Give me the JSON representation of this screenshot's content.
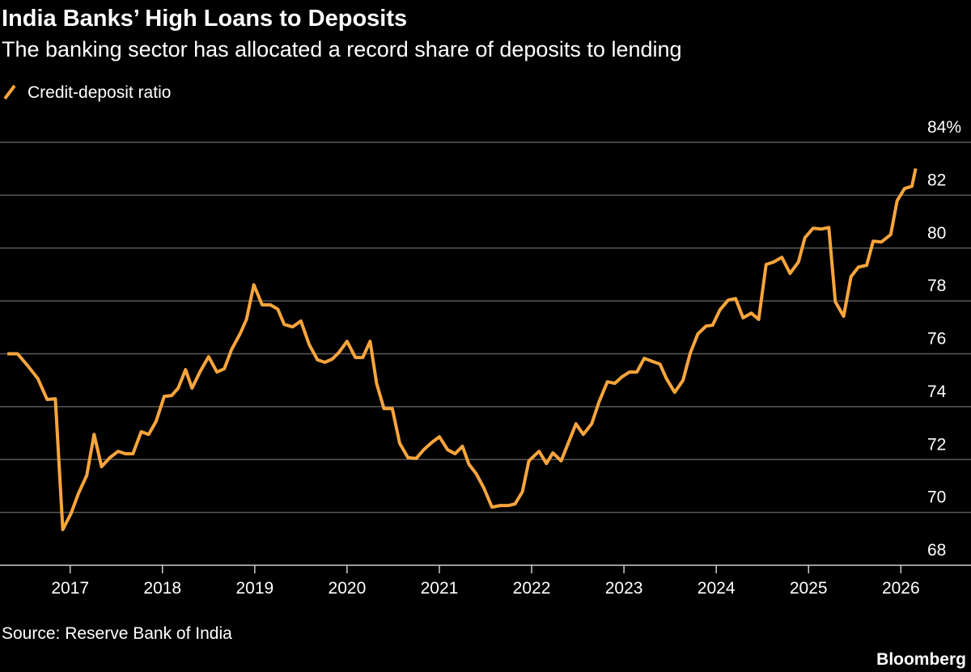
{
  "chart_data": {
    "type": "line",
    "title": "India Banks’ High Loans to Deposits",
    "subtitle": "The banking sector has allocated a record share of deposits to lending",
    "source": "Source: Reserve Bank of India",
    "brand": "Bloomberg",
    "x": [
      2016.32,
      2016.43,
      2016.54,
      2016.65,
      2016.75,
      2016.84,
      2016.92,
      2017.01,
      2017.09,
      2017.18,
      2017.26,
      2017.34,
      2017.43,
      2017.52,
      2017.6,
      2017.68,
      2017.77,
      2017.85,
      2017.93,
      2018.02,
      2018.1,
      2018.17,
      2018.25,
      2018.32,
      2018.41,
      2018.5,
      2018.59,
      2018.67,
      2018.75,
      2018.84,
      2018.91,
      2018.99,
      2019.08,
      2019.17,
      2019.25,
      2019.32,
      2019.41,
      2019.5,
      2019.59,
      2019.68,
      2019.76,
      2019.84,
      2019.91,
      2020.0,
      2020.09,
      2020.17,
      2020.25,
      2020.32,
      2020.4,
      2020.49,
      2020.57,
      2020.66,
      2020.75,
      2020.83,
      2020.92,
      2021.0,
      2021.09,
      2021.17,
      2021.25,
      2021.32,
      2021.4,
      2021.48,
      2021.57,
      2021.66,
      2021.75,
      2021.82,
      2021.9,
      2021.97,
      2022.08,
      2022.16,
      2022.23,
      2022.32,
      2022.39,
      2022.48,
      2022.56,
      2022.65,
      2022.73,
      2022.82,
      2022.9,
      2022.98,
      2023.06,
      2023.14,
      2023.22,
      2023.31,
      2023.39,
      2023.46,
      2023.55,
      2023.64,
      2023.72,
      2023.8,
      2023.89,
      2023.96,
      2024.04,
      2024.13,
      2024.21,
      2024.29,
      2024.38,
      2024.46,
      2024.54,
      2024.62,
      2024.71,
      2024.8,
      2024.89,
      2024.96,
      2025.05,
      2025.14,
      2025.22,
      2025.29,
      2025.38,
      2025.46,
      2025.54,
      2025.63,
      2025.7,
      2025.79,
      2025.89,
      2025.96,
      2026.04,
      2026.12,
      2026.16
    ],
    "series": [
      {
        "name": "Credit-deposit ratio",
        "color": "#f9a53c",
        "values": [
          76.0,
          76.0,
          75.55,
          75.06,
          74.27,
          74.3,
          69.35,
          69.96,
          70.72,
          71.4,
          72.95,
          71.73,
          72.07,
          72.31,
          72.22,
          72.22,
          73.05,
          72.95,
          73.44,
          74.39,
          74.42,
          74.7,
          75.4,
          74.7,
          75.34,
          75.89,
          75.31,
          75.43,
          76.17,
          76.75,
          77.3,
          78.61,
          77.85,
          77.85,
          77.69,
          77.11,
          77.02,
          77.24,
          76.35,
          75.77,
          75.68,
          75.8,
          76.04,
          76.47,
          75.86,
          75.86,
          76.47,
          74.88,
          73.93,
          73.93,
          72.62,
          72.07,
          72.04,
          72.37,
          72.65,
          72.86,
          72.37,
          72.22,
          72.5,
          71.82,
          71.46,
          70.94,
          70.2,
          70.26,
          70.26,
          70.32,
          70.78,
          71.95,
          72.31,
          71.85,
          72.25,
          71.95,
          72.56,
          73.35,
          72.95,
          73.35,
          74.18,
          74.94,
          74.88,
          75.13,
          75.31,
          75.31,
          75.83,
          75.71,
          75.61,
          75.06,
          74.54,
          75.0,
          76.04,
          76.75,
          77.05,
          77.08,
          77.66,
          78.03,
          78.09,
          77.36,
          77.54,
          77.3,
          79.38,
          79.47,
          79.65,
          79.04,
          79.47,
          80.39,
          80.75,
          80.72,
          80.78,
          77.97,
          77.42,
          78.92,
          79.28,
          79.35,
          80.26,
          80.23,
          80.51,
          81.79,
          82.25,
          82.34,
          83.01
        ]
      }
    ],
    "xlim": [
      2016.24,
      2026.76
    ],
    "xticks": [
      2017,
      2018,
      2019,
      2020,
      2021,
      2022,
      2023,
      2024,
      2025,
      2026
    ],
    "ylim": [
      68,
      84
    ],
    "yticks": [
      68,
      70,
      72,
      74,
      76,
      78,
      80,
      82,
      {
        "value": 84,
        "label": "84%"
      }
    ],
    "grid": true
  }
}
